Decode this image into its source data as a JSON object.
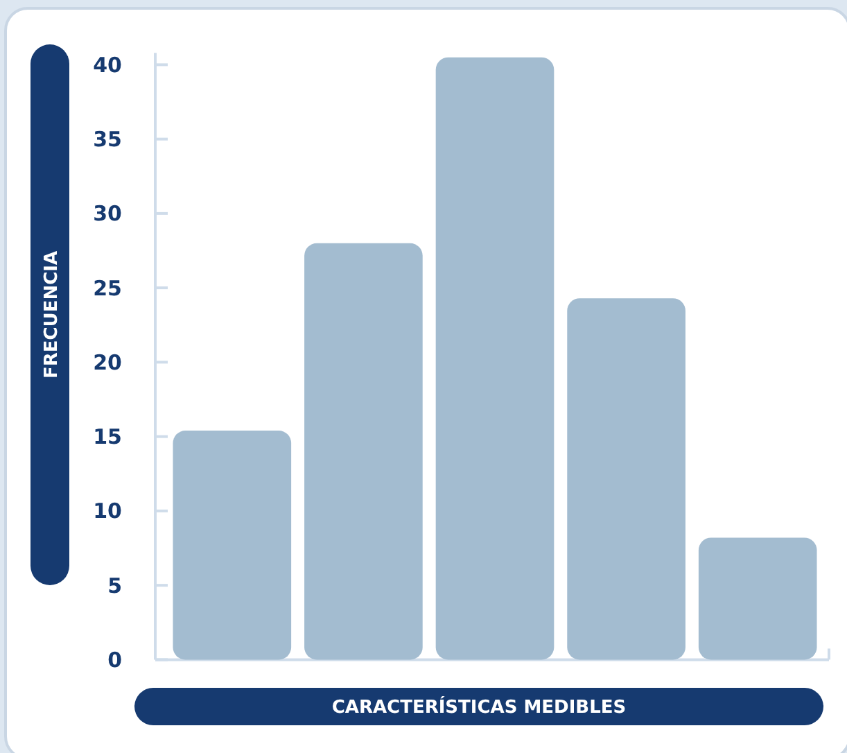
{
  "chart_data": {
    "type": "bar",
    "xlabel": "CARACTERÍSTICAS MEDIBLES",
    "ylabel": "FRECUENCIA",
    "categories": [
      null,
      null,
      null,
      null,
      null
    ],
    "values": [
      15.4,
      28,
      40.5,
      24.3,
      8.2
    ],
    "color": "#a3bcd0",
    "ylim": [
      0,
      40.8
    ],
    "yticks": [
      0,
      5,
      10,
      15,
      20,
      25,
      30,
      35,
      40
    ]
  }
}
